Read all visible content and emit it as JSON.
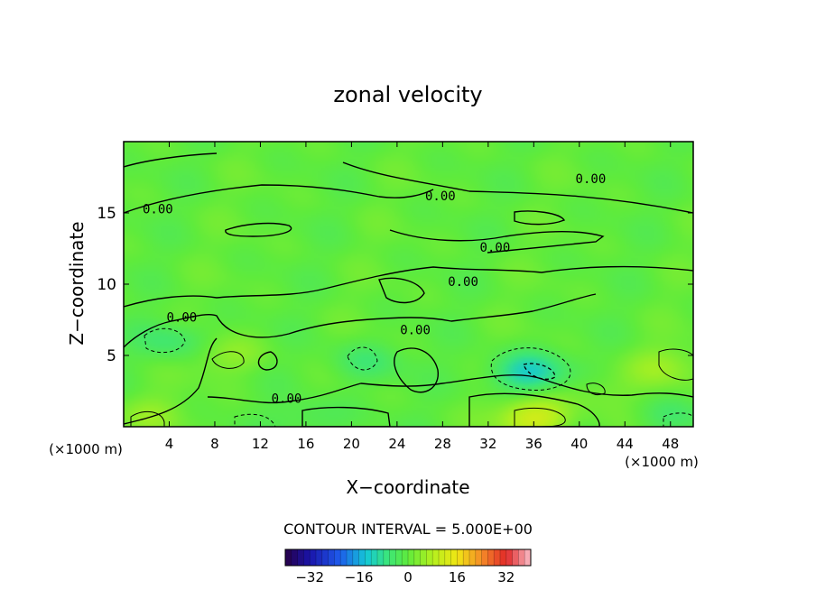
{
  "chart_data": {
    "type": "heatmap",
    "title": "zonal velocity",
    "xlabel": "X−coordinate",
    "ylabel": "Z−coordinate",
    "x_unit_label_left": "(×1000 m)",
    "x_unit_label_right": "(×1000 m)",
    "xlim": [
      0,
      50
    ],
    "ylim": [
      0,
      20
    ],
    "x_ticks": [
      4,
      8,
      12,
      16,
      20,
      24,
      28,
      32,
      36,
      40,
      44,
      48
    ],
    "x_tick_labels": [
      "4",
      "8",
      "12",
      "16",
      "20",
      "24",
      "28",
      "32",
      "36",
      "40",
      "44",
      "48"
    ],
    "y_ticks": [
      5,
      10,
      15
    ],
    "y_tick_labels": [
      "5",
      "10",
      "15"
    ],
    "contour_interval_text": "CONTOUR INTERVAL = 5.000E+00",
    "contour_labels": [
      {
        "text": "0.00",
        "x": 3.0,
        "y": 15.3
      },
      {
        "text": "0.00",
        "x": 27.8,
        "y": 16.2
      },
      {
        "text": "0.00",
        "x": 41.0,
        "y": 17.4
      },
      {
        "text": "0.00",
        "x": 32.6,
        "y": 12.6
      },
      {
        "text": "0.00",
        "x": 29.8,
        "y": 10.2
      },
      {
        "text": "0.00",
        "x": 5.1,
        "y": 7.7
      },
      {
        "text": "0.00",
        "x": 25.6,
        "y": 6.8
      },
      {
        "text": "0.00",
        "x": 14.3,
        "y": 2.0
      }
    ],
    "colorbar": {
      "range": [
        -40,
        40
      ],
      "tick_values": [
        -32,
        -16,
        0,
        16,
        32
      ],
      "tick_labels": [
        "−32",
        "−16",
        "0",
        "16",
        "32"
      ]
    },
    "field_features": [
      {
        "kind": "negative",
        "x": 35.5,
        "y": 3.8,
        "value": -12
      },
      {
        "kind": "negative",
        "x": 4.5,
        "y": 6.0,
        "value": -6
      },
      {
        "kind": "negative",
        "x": 21.0,
        "y": 4.5,
        "value": -5
      },
      {
        "kind": "negative",
        "x": 16.5,
        "y": 0.6,
        "value": -4
      },
      {
        "kind": "negative",
        "x": 48.0,
        "y": 0.7,
        "value": -4
      },
      {
        "kind": "positive",
        "x": 36.0,
        "y": 0.6,
        "value": 12
      },
      {
        "kind": "positive",
        "x": 9.0,
        "y": 5.0,
        "value": 5
      },
      {
        "kind": "positive",
        "x": 2.5,
        "y": 0.8,
        "value": 4
      },
      {
        "kind": "positive",
        "x": 47.5,
        "y": 4.2,
        "value": 5
      },
      {
        "kind": "positive",
        "x": 41.5,
        "y": 2.5,
        "value": 3
      }
    ]
  }
}
